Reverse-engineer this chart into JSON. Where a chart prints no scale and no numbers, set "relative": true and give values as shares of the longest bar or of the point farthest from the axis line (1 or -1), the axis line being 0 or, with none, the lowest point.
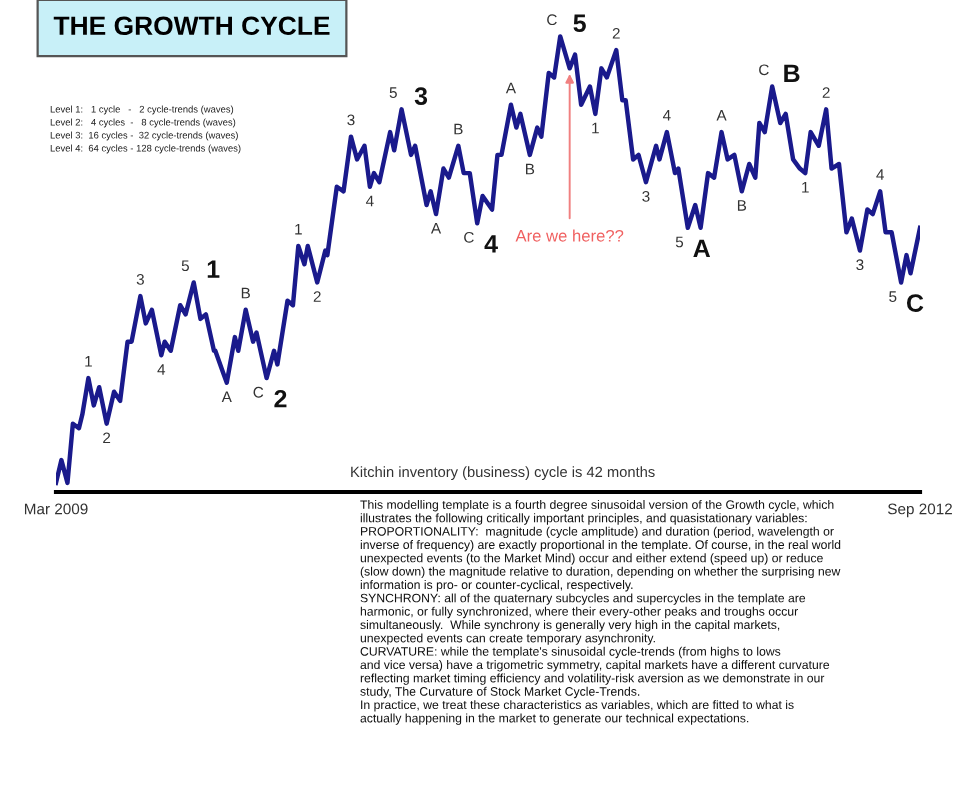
{
  "chart_data": {
    "type": "line",
    "title": "THE GROWTH CYCLE",
    "relative": true,
    "xlim": [
      "2009-03-01",
      "2012-09-01"
    ],
    "xticks": [
      {
        "value": "2009-03-01",
        "label": "Mar 2009"
      },
      {
        "value": "2012-09-01",
        "label": "Sep 2012"
      }
    ],
    "grid": false,
    "marker": "none",
    "line_style": "solid",
    "series": [
      {
        "color": "#1a1a8c",
        "x": [
          "2009-03-01",
          "2009-03-09",
          "2009-03-18",
          "2009-03-26",
          "2009-04-04",
          "2009-04-09",
          "2009-04-18",
          "2009-04-26",
          "2009-05-04",
          "2009-05-15",
          "2009-05-26",
          "2009-06-04",
          "2009-06-15",
          "2009-06-21",
          "2009-07-04",
          "2009-07-12",
          "2009-07-21",
          "2009-08-04",
          "2009-08-09",
          "2009-08-18",
          "2009-09-01",
          "2009-09-09",
          "2009-09-21",
          "2009-10-01",
          "2009-10-09",
          "2009-10-21",
          "2009-10-23",
          "2009-11-04",
          "2009-11-09",
          "2009-11-21",
          "2009-11-26",
          "2009-12-07",
          "2009-12-18",
          "2009-12-23",
          "2010-01-07",
          "2010-01-18",
          "2010-01-23",
          "2010-02-07",
          "2010-02-15",
          "2010-02-23",
          "2010-03-04",
          "2010-03-09",
          "2010-03-23",
          "2010-04-04",
          "2010-04-07",
          "2010-04-21",
          "2010-05-01",
          "2010-05-12",
          "2010-05-21",
          "2010-06-01",
          "2010-06-09",
          "2010-06-15",
          "2010-06-23",
          "2010-07-09",
          "2010-07-15",
          "2010-07-26",
          "2010-08-09",
          "2010-08-15",
          "2010-09-01",
          "2010-09-07",
          "2010-09-15",
          "2010-09-26",
          "2010-10-04",
          "2010-10-18",
          "2010-10-26",
          "2010-11-04",
          "2010-11-15",
          "2010-11-23",
          "2010-12-07",
          "2010-12-15",
          "2010-12-21",
          "2011-01-04",
          "2011-01-12",
          "2011-01-18",
          "2011-02-01",
          "2011-02-12",
          "2011-02-18",
          "2011-03-01",
          "2011-03-09",
          "2011-03-18",
          "2011-04-01",
          "2011-04-09",
          "2011-04-18",
          "2011-05-01",
          "2011-05-09",
          "2011-05-18",
          "2011-05-26",
          "2011-06-09",
          "2011-06-18",
          "2011-06-23",
          "2011-07-04",
          "2011-07-12",
          "2011-07-23",
          "2011-08-07",
          "2011-08-12",
          "2011-08-23",
          "2011-09-04",
          "2011-09-09",
          "2011-09-23",
          "2011-10-04",
          "2011-10-12",
          "2011-10-23",
          "2011-11-01",
          "2011-11-12",
          "2011-11-21",
          "2011-12-01",
          "2011-12-12",
          "2011-12-23",
          "2012-01-01",
          "2012-01-07",
          "2012-01-15",
          "2012-01-26",
          "2012-02-07",
          "2012-02-15",
          "2012-02-26",
          "2012-03-07",
          "2012-03-15",
          "2012-03-23",
          "2012-04-04",
          "2012-04-15",
          "2012-04-23",
          "2012-05-04",
          "2012-05-15",
          "2012-05-23",
          "2012-06-04",
          "2012-06-15",
          "2012-06-23",
          "2012-07-04",
          "2012-07-12",
          "2012-07-21",
          "2012-08-04",
          "2012-08-12",
          "2012-08-18",
          "2012-09-01"
        ],
        "values": [
          0.02,
          0.07,
          0.02,
          0.15,
          0.14,
          0.17,
          0.25,
          0.19,
          0.23,
          0.15,
          0.22,
          0.2,
          0.33,
          0.33,
          0.43,
          0.37,
          0.4,
          0.3,
          0.33,
          0.31,
          0.41,
          0.39,
          0.46,
          0.38,
          0.39,
          0.31,
          0.31,
          0.26,
          0.24,
          0.34,
          0.31,
          0.4,
          0.33,
          0.35,
          0.25,
          0.31,
          0.28,
          0.42,
          0.41,
          0.54,
          0.5,
          0.54,
          0.46,
          0.53,
          0.52,
          0.67,
          0.66,
          0.78,
          0.73,
          0.76,
          0.67,
          0.7,
          0.68,
          0.79,
          0.75,
          0.84,
          0.74,
          0.76,
          0.63,
          0.66,
          0.61,
          0.71,
          0.69,
          0.76,
          0.7,
          0.7,
          0.59,
          0.65,
          0.62,
          0.74,
          0.74,
          0.85,
          0.8,
          0.83,
          0.74,
          0.8,
          0.78,
          0.92,
          0.91,
          1.0,
          0.93,
          0.96,
          0.85,
          0.89,
          0.83,
          0.93,
          0.91,
          0.97,
          0.86,
          0.86,
          0.73,
          0.74,
          0.68,
          0.76,
          0.73,
          0.79,
          0.7,
          0.71,
          0.58,
          0.63,
          0.58,
          0.7,
          0.69,
          0.79,
          0.73,
          0.74,
          0.66,
          0.72,
          0.69,
          0.81,
          0.79,
          0.89,
          0.81,
          0.83,
          0.73,
          0.71,
          0.7,
          0.79,
          0.76,
          0.84,
          0.71,
          0.72,
          0.57,
          0.6,
          0.53,
          0.62,
          0.61,
          0.66,
          0.57,
          0.57,
          0.46,
          0.52,
          0.48,
          0.58
        ]
      }
    ],
    "annotations": [
      "Level 1:   1 cycle   -   2 cycle-trends (waves)",
      "Level 2:   4 cycles  -   8 cycle-trends (waves)",
      "Level 3:  16 cycles -  32 cycle-trends (waves)",
      "Level 4:  64 cycles - 128 cycle-trends (waves)",
      "Kitchin inventory (business) cycle is 42 months",
      "This modelling template is a fourth degree sinusoidal version of the Growth cycle, which\nillustrates the following critically important principles, and quasistationary variables:",
      "PROPORTIONALITY:  magnitude (cycle amplitude) and duration (period, wavelength or\ninverse of frequency) are exactly proportional in the template. Of course, in the real world\nunexpected events (to the Market Mind) occur and either extend (speed up) or reduce\n(slow down) the magnitude relative to duration, depending on whether the surprising new\ninformation is pro- or counter-cyclical, respectively.",
      "SYNCHRONY: all of the quaternary subcycles and supercycles in the template are\nharmonic, or fully synchronized, where their every-other peaks and troughs occur\nsimultaneously.  While synchrony is generally very high in the capital markets,\nunexpected events can create temporary asynchronity.",
      "CURVATURE: while the template's sinusoidal cycle-trends (from highs to lows\nand vice versa) have a trigometric symmetry, capital markets have a different curvature\nreflecting market timing efficiency and volatility-risk aversion as we demonstrate in our\nstudy, The Curvature of Stock Market Cycle-Trends.",
      "In practice, we treat these characteristics as variables, which are fitted to what is\nactually happening in the market to generate our technical expectations.",
      {
        "text": "1",
        "x": "2009-04-18",
        "y": 0.25
      },
      {
        "text": "2",
        "x": "2009-05-15",
        "y": 0.15
      },
      {
        "text": "3",
        "x": "2009-07-04",
        "y": 0.43
      },
      {
        "text": "4",
        "x": "2009-08-04",
        "y": 0.3
      },
      {
        "text": "5",
        "x": "2009-09-21",
        "y": 0.46
      },
      {
        "text": "1",
        "x": "2009-09-21",
        "y": 0.46
      },
      {
        "text": "A",
        "x": "2009-11-09",
        "y": 0.24
      },
      {
        "text": "B",
        "x": "2009-12-07",
        "y": 0.4
      },
      {
        "text": "C",
        "x": "2010-01-07",
        "y": 0.25
      },
      {
        "text": "2",
        "x": "2010-01-07",
        "y": 0.25
      },
      {
        "text": "1",
        "x": "2010-02-23",
        "y": 0.54
      },
      {
        "text": "2",
        "x": "2010-03-23",
        "y": 0.46
      },
      {
        "text": "3",
        "x": "2010-05-12",
        "y": 0.78
      },
      {
        "text": "4",
        "x": "2010-06-09",
        "y": 0.67
      },
      {
        "text": "5",
        "x": "2010-07-26",
        "y": 0.84
      },
      {
        "text": "3",
        "x": "2010-07-26",
        "y": 0.84
      },
      {
        "text": "A",
        "x": "2010-09-15",
        "y": 0.61
      },
      {
        "text": "B",
        "x": "2010-10-18",
        "y": 0.76
      },
      {
        "text": "C",
        "x": "2010-11-15",
        "y": 0.59
      },
      {
        "text": "4",
        "x": "2010-11-15",
        "y": 0.59
      },
      {
        "text": "A",
        "x": "2011-01-04",
        "y": 0.85
      },
      {
        "text": "B",
        "x": "2011-02-01",
        "y": 0.74
      },
      {
        "text": "C",
        "x": "2011-03-18",
        "y": 1.0
      },
      {
        "text": "5",
        "x": "2011-03-18",
        "y": 1.0
      },
      {
        "text": "1",
        "x": "2011-05-09",
        "y": 0.83
      },
      {
        "text": "2",
        "x": "2011-06-09",
        "y": 0.97
      },
      {
        "text": "3",
        "x": "2011-07-23",
        "y": 0.68
      },
      {
        "text": "4",
        "x": "2011-08-23",
        "y": 0.79
      },
      {
        "text": "5",
        "x": "2011-09-23",
        "y": 0.58
      },
      {
        "text": "A",
        "x": "2011-09-23",
        "y": 0.58
      },
      {
        "text": "A",
        "x": "2011-11-12",
        "y": 0.79
      },
      {
        "text": "B",
        "x": "2011-12-12",
        "y": 0.66
      },
      {
        "text": "C",
        "x": "2012-01-26",
        "y": 0.89
      },
      {
        "text": "B",
        "x": "2012-01-26",
        "y": 0.89
      },
      {
        "text": "1",
        "x": "2012-03-15",
        "y": 0.7
      },
      {
        "text": "2",
        "x": "2012-04-15",
        "y": 0.84
      },
      {
        "text": "3",
        "x": "2012-06-04",
        "y": 0.53
      },
      {
        "text": "4",
        "x": "2012-07-04",
        "y": 0.66
      },
      {
        "text": "5",
        "x": "2012-08-04",
        "y": 0.46
      },
      {
        "text": "C",
        "x": "2012-08-04",
        "y": 0.46
      },
      {
        "text": "Are we here??",
        "x": "2011-04-01",
        "y": 0.93
      }
    ]
  }
}
